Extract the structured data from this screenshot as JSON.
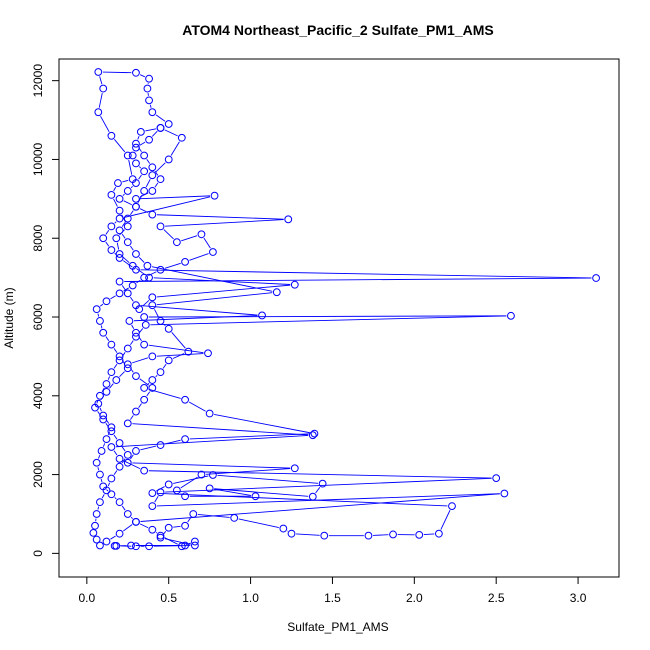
{
  "chart_data": {
    "type": "scatter",
    "title": "ATOM4 Northeast_Pacific_2 Sulfate_PM1_AMS",
    "xlabel": "Sulfate_PM1_AMS",
    "ylabel": "Altitude (m)",
    "xlim": [
      -0.17,
      3.25
    ],
    "ylim": [
      -600,
      12550
    ],
    "x_ticks": [
      0.0,
      0.5,
      1.0,
      1.5,
      2.0,
      2.5,
      3.0
    ],
    "x_tick_labels": [
      "0.0",
      "0.5",
      "1.0",
      "1.5",
      "2.0",
      "2.5",
      "3.0"
    ],
    "y_ticks": [
      0,
      2000,
      4000,
      6000,
      8000,
      10000,
      12000
    ],
    "y_tick_labels": [
      "0",
      "2000",
      "4000",
      "6000",
      "8000",
      "10000",
      "12000"
    ],
    "grid": false,
    "series": [
      {
        "color": "#0000ff",
        "marker": "open-circle",
        "connected": true,
        "points": [
          [
            0.17,
            190
          ],
          [
            0.27,
            200
          ],
          [
            0.6,
            200
          ],
          [
            0.66,
            300
          ],
          [
            0.58,
            180
          ],
          [
            0.45,
            450
          ],
          [
            0.4,
            600
          ],
          [
            0.3,
            800
          ],
          [
            0.25,
            1000
          ],
          [
            0.2,
            1300
          ],
          [
            0.15,
            1500
          ],
          [
            0.1,
            1700
          ],
          [
            0.08,
            2000
          ],
          [
            0.06,
            2300
          ],
          [
            0.09,
            2600
          ],
          [
            0.12,
            2900
          ],
          [
            0.15,
            3200
          ],
          [
            0.1,
            3500
          ],
          [
            0.07,
            3800
          ],
          [
            0.12,
            4100
          ],
          [
            0.18,
            4400
          ],
          [
            0.25,
            4700
          ],
          [
            0.2,
            5000
          ],
          [
            0.15,
            5300
          ],
          [
            0.1,
            5600
          ],
          [
            0.08,
            5900
          ],
          [
            0.06,
            6200
          ],
          [
            0.12,
            6400
          ],
          [
            0.2,
            6600
          ],
          [
            0.28,
            6800
          ],
          [
            0.35,
            7000
          ],
          [
            0.45,
            7200
          ],
          [
            0.6,
            7400
          ],
          [
            0.77,
            7650
          ],
          [
            0.7,
            8100
          ],
          [
            0.55,
            7900
          ],
          [
            0.45,
            8300
          ],
          [
            1.23,
            8480
          ],
          [
            0.4,
            8600
          ],
          [
            0.3,
            8800
          ],
          [
            0.2,
            9000
          ],
          [
            0.25,
            9200
          ],
          [
            0.3,
            9400
          ],
          [
            0.35,
            9700
          ],
          [
            0.3,
            9900
          ],
          [
            0.28,
            10100
          ],
          [
            0.3,
            10300
          ],
          [
            0.38,
            10500
          ],
          [
            0.45,
            10800
          ],
          [
            0.5,
            10900
          ],
          [
            0.4,
            11200
          ],
          [
            0.38,
            11500
          ],
          [
            0.37,
            11800
          ],
          [
            0.38,
            12050
          ],
          [
            0.3,
            12200
          ],
          [
            0.07,
            12220
          ],
          [
            0.1,
            11800
          ],
          [
            0.07,
            11200
          ],
          [
            0.15,
            10600
          ],
          [
            0.25,
            10100
          ],
          [
            0.28,
            9500
          ],
          [
            0.19,
            9400
          ],
          [
            0.15,
            9100
          ],
          [
            0.2,
            8700
          ],
          [
            0.25,
            8300
          ],
          [
            0.18,
            8000
          ],
          [
            0.2,
            7600
          ],
          [
            0.28,
            7300
          ],
          [
            0.38,
            7000
          ],
          [
            1.27,
            6820
          ],
          [
            0.4,
            6500
          ],
          [
            0.32,
            6200
          ],
          [
            0.35,
            6000
          ],
          [
            2.59,
            6030
          ],
          [
            0.36,
            5800
          ],
          [
            0.3,
            5500
          ],
          [
            0.25,
            5200
          ],
          [
            0.2,
            4900
          ],
          [
            0.15,
            4600
          ],
          [
            0.12,
            4300
          ],
          [
            0.08,
            4000
          ],
          [
            0.05,
            3700
          ],
          [
            0.1,
            3400
          ],
          [
            0.15,
            3100
          ],
          [
            0.2,
            2800
          ],
          [
            0.25,
            2500
          ],
          [
            0.2,
            2200
          ],
          [
            0.15,
            1900
          ],
          [
            0.12,
            1600
          ],
          [
            0.08,
            1300
          ],
          [
            0.06,
            1000
          ],
          [
            0.05,
            700
          ],
          [
            0.04,
            520
          ],
          [
            0.06,
            350
          ],
          [
            0.08,
            200
          ],
          [
            0.12,
            300
          ],
          [
            0.2,
            500
          ],
          [
            0.3,
            800
          ],
          [
            2.55,
            1520
          ],
          [
            0.4,
            1200
          ],
          [
            0.45,
            1550
          ],
          [
            2.5,
            1910
          ],
          [
            0.35,
            2100
          ],
          [
            0.2,
            2400
          ],
          [
            0.15,
            2700
          ],
          [
            1.38,
            3000
          ],
          [
            0.25,
            3300
          ],
          [
            0.3,
            3600
          ],
          [
            0.35,
            3900
          ],
          [
            0.4,
            4200
          ],
          [
            0.3,
            4500
          ],
          [
            0.25,
            4800
          ],
          [
            0.4,
            5000
          ],
          [
            0.74,
            5080
          ],
          [
            0.35,
            5300
          ],
          [
            0.3,
            5600
          ],
          [
            0.26,
            5900
          ],
          [
            1.07,
            6040
          ],
          [
            0.3,
            6300
          ],
          [
            0.25,
            6600
          ],
          [
            0.2,
            6900
          ],
          [
            3.11,
            6990
          ],
          [
            0.3,
            7200
          ],
          [
            0.2,
            7500
          ],
          [
            0.15,
            7700
          ],
          [
            0.1,
            8000
          ],
          [
            0.15,
            8300
          ],
          [
            0.2,
            8500
          ],
          [
            0.78,
            9080
          ],
          [
            0.3,
            9000
          ],
          [
            0.4,
            9200
          ],
          [
            0.45,
            9500
          ],
          [
            0.4,
            9800
          ],
          [
            0.35,
            10100
          ],
          [
            0.3,
            10400
          ],
          [
            0.33,
            10700
          ],
          [
            0.45,
            10800
          ],
          [
            0.58,
            10550
          ],
          [
            0.5,
            10000
          ],
          [
            0.4,
            9600
          ],
          [
            0.35,
            9200
          ],
          [
            0.3,
            8800
          ],
          [
            0.25,
            8500
          ],
          [
            0.2,
            8200
          ],
          [
            0.25,
            7900
          ],
          [
            0.3,
            7600
          ],
          [
            0.37,
            7300
          ],
          [
            1.16,
            6630
          ],
          [
            0.4,
            6300
          ],
          [
            0.45,
            5900
          ],
          [
            0.5,
            5700
          ],
          [
            0.62,
            5120
          ],
          [
            0.5,
            4900
          ],
          [
            0.45,
            4600
          ],
          [
            0.4,
            4400
          ],
          [
            0.35,
            4200
          ],
          [
            0.6,
            3900
          ],
          [
            0.75,
            3550
          ],
          [
            1.39,
            3040
          ],
          [
            0.6,
            2900
          ],
          [
            0.45,
            2750
          ],
          [
            0.3,
            2600
          ],
          [
            0.25,
            2300
          ],
          [
            1.27,
            2160
          ],
          [
            0.7,
            2000
          ],
          [
            0.55,
            1600
          ],
          [
            0.6,
            1450
          ],
          [
            1.03,
            1450
          ],
          [
            0.75,
            1650
          ],
          [
            1.38,
            1440
          ],
          [
            1.44,
            1770
          ],
          [
            0.77,
            1990
          ],
          [
            0.5,
            1750
          ],
          [
            0.4,
            1530
          ],
          [
            2.23,
            1200
          ],
          [
            2.15,
            500
          ],
          [
            2.03,
            470
          ],
          [
            1.87,
            480
          ],
          [
            1.72,
            450
          ],
          [
            1.45,
            450
          ],
          [
            1.25,
            500
          ],
          [
            1.2,
            630
          ],
          [
            0.9,
            900
          ],
          [
            0.65,
            1000
          ],
          [
            0.6,
            700
          ],
          [
            0.5,
            650
          ],
          [
            0.45,
            400
          ],
          [
            0.66,
            200
          ],
          [
            0.38,
            180
          ],
          [
            0.3,
            180
          ],
          [
            0.18,
            190
          ]
        ]
      }
    ]
  }
}
